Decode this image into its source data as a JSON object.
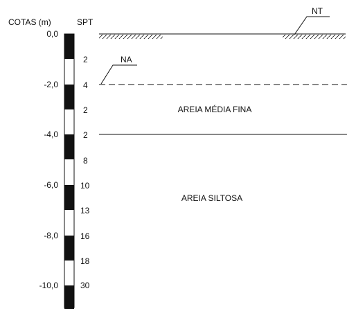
{
  "header": {
    "elevation_label": "COTAS (m)",
    "spt_label": "SPT"
  },
  "elevations": [
    "0,0",
    "-2,0",
    "-4,0",
    "-6,0",
    "-8,0",
    "-10,0"
  ],
  "spt_values": [
    "2",
    "4",
    "2",
    "2",
    "8",
    "10",
    "13",
    "16",
    "18",
    "30"
  ],
  "layers": [
    {
      "name": "AREIA MÉDIA FINA"
    },
    {
      "name": "AREIA SILTOSA"
    }
  ],
  "markers": {
    "ground_level": "NT",
    "water_table": "NA"
  }
}
